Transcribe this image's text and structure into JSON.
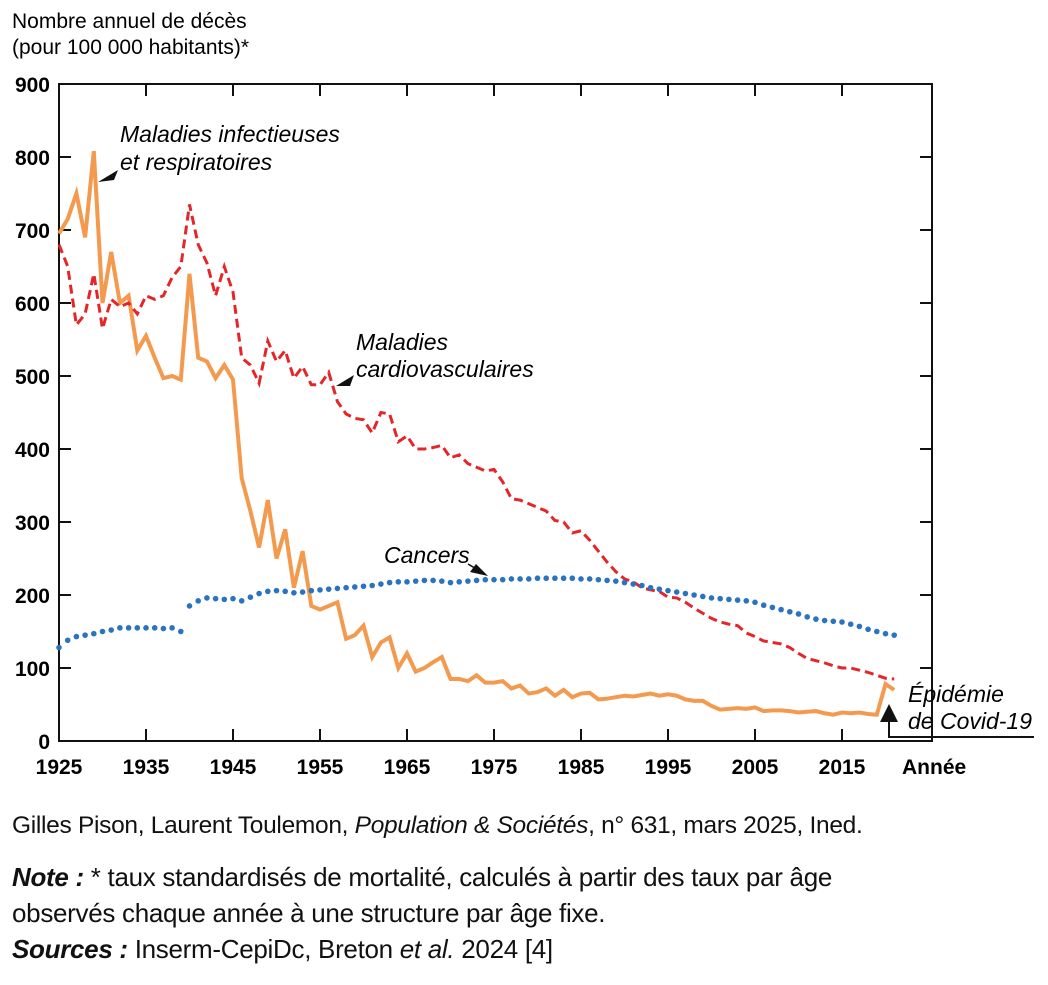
{
  "chart_data": {
    "type": "line",
    "title_lines": [
      "Nombre annuel de décès",
      "(pour 100 000 habitants)*"
    ],
    "xlabel": "Année",
    "ylabel": "Nombre annuel de décès (pour 100 000 habitants)*",
    "xlim": [
      1925,
      2025
    ],
    "ylim": [
      0,
      900
    ],
    "x_ticks": [
      "1925",
      "1935",
      "1945",
      "1955",
      "1965",
      "1975",
      "1985",
      "1995",
      "2005",
      "2015"
    ],
    "y_ticks": [
      "0",
      "100",
      "200",
      "300",
      "400",
      "500",
      "600",
      "700",
      "800",
      "900"
    ],
    "x_start": 1925,
    "series": [
      {
        "name": "Maladies infectieuses et respiratoires",
        "label_lines": [
          "Maladies infectieuses",
          "et respiratoires"
        ],
        "color": "#f39a4e",
        "style": "solid",
        "values": [
          695,
          715,
          750,
          690,
          808,
          600,
          670,
          600,
          610,
          535,
          555,
          525,
          497,
          500,
          495,
          640,
          525,
          520,
          497,
          515,
          495,
          360,
          315,
          265,
          330,
          250,
          290,
          210,
          260,
          185,
          180,
          185,
          190,
          140,
          145,
          158,
          115,
          135,
          142,
          100,
          120,
          95,
          100,
          108,
          115,
          85,
          85,
          82,
          90,
          80,
          80,
          82,
          72,
          76,
          65,
          67,
          72,
          62,
          70,
          60,
          65,
          66,
          57,
          58,
          60,
          62,
          61,
          63,
          65,
          62,
          64,
          62,
          57,
          55,
          55,
          48,
          43,
          44,
          45,
          44,
          46,
          41,
          42,
          42,
          41,
          39,
          40,
          41,
          38,
          36,
          39,
          38,
          39,
          37,
          36,
          78,
          70
        ]
      },
      {
        "name": "Maladies cardiovasculaires",
        "label_lines": [
          "Maladies",
          "cardiovasculaires"
        ],
        "color": "#e4262a",
        "style": "dashed",
        "values": [
          680,
          650,
          570,
          585,
          640,
          565,
          605,
          595,
          600,
          585,
          610,
          605,
          610,
          635,
          650,
          735,
          680,
          655,
          610,
          650,
          615,
          525,
          515,
          490,
          548,
          520,
          535,
          497,
          513,
          488,
          488,
          505,
          465,
          448,
          442,
          440,
          422,
          450,
          448,
          410,
          418,
          400,
          400,
          402,
          405,
          388,
          392,
          380,
          375,
          370,
          372,
          355,
          332,
          330,
          325,
          320,
          315,
          302,
          300,
          285,
          288,
          275,
          260,
          245,
          232,
          222,
          218,
          210,
          207,
          205,
          197,
          196,
          190,
          182,
          175,
          168,
          163,
          160,
          158,
          148,
          143,
          137,
          135,
          133,
          128,
          120,
          113,
          110,
          107,
          103,
          100,
          100,
          97,
          94,
          90,
          86,
          85
        ]
      },
      {
        "name": "Cancers",
        "label_lines": [
          "Cancers"
        ],
        "color": "#2a73c0",
        "style": "dotted",
        "values": [
          128,
          138,
          143,
          145,
          147,
          150,
          152,
          155,
          155,
          155,
          155,
          155,
          154,
          155,
          150,
          185,
          192,
          196,
          195,
          194,
          195,
          192,
          197,
          202,
          205,
          206,
          205,
          203,
          204,
          206,
          207,
          208,
          209,
          210,
          211,
          212,
          213,
          215,
          217,
          218,
          218,
          219,
          220,
          220,
          219,
          217,
          218,
          219,
          220,
          221,
          221,
          221,
          222,
          222,
          222,
          223,
          223,
          223,
          223,
          223,
          222,
          222,
          221,
          220,
          219,
          217,
          215,
          213,
          210,
          208,
          206,
          204,
          202,
          200,
          198,
          196,
          195,
          194,
          193,
          192,
          190,
          186,
          183,
          180,
          177,
          174,
          170,
          167,
          165,
          164,
          163,
          160,
          157,
          153,
          150,
          147,
          145
        ]
      }
    ],
    "annotations": [
      {
        "label_lines": [
          "Épidémie",
          "de Covid-19"
        ],
        "x": 2020
      }
    ]
  },
  "footer": {
    "credit_authors": "Gilles Pison, Laurent Toulemon, ",
    "credit_journal": "Population & Sociétés",
    "credit_rest": ", n° 631, mars 2025, Ined.",
    "note_label": "Note :",
    "note_text": " * taux standardisés de mortalité, calculés à partir des taux par âge",
    "note_text2": "observés chaque année à une structure par âge fixe.",
    "sources_label": "Sources :",
    "sources_text": " Inserm-CepiDc, Breton ",
    "sources_etal": "et al.",
    "sources_rest": " 2024 [4]"
  }
}
